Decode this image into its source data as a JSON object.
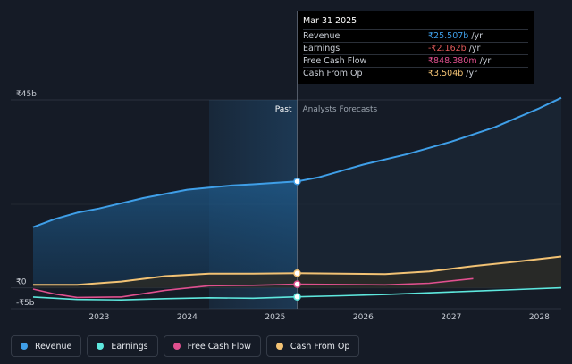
{
  "chart_data": {
    "type": "line",
    "y_ticks": [
      {
        "value": 45,
        "label": "₹45b"
      },
      {
        "value": 0,
        "label": "₹0"
      },
      {
        "value": -5,
        "label": "-₹5b"
      }
    ],
    "ylim": [
      -5,
      45
    ],
    "x_ticks": [
      "2023",
      "2024",
      "2025",
      "2026",
      "2027",
      "2028"
    ],
    "past_label": "Past",
    "forecast_label": "Analysts Forecasts",
    "series": [
      {
        "name": "Revenue",
        "color": "#3f9fe8",
        "points": [
          [
            2022.25,
            14.5
          ],
          [
            2022.5,
            16.5
          ],
          [
            2022.75,
            18.0
          ],
          [
            2023.0,
            19.0
          ],
          [
            2023.5,
            21.5
          ],
          [
            2024.0,
            23.5
          ],
          [
            2024.5,
            24.5
          ],
          [
            2024.75,
            24.8
          ],
          [
            2025.25,
            25.5
          ],
          [
            2025.5,
            26.5
          ],
          [
            2026.0,
            29.5
          ],
          [
            2026.5,
            32.0
          ],
          [
            2027.0,
            35.0
          ],
          [
            2027.5,
            38.5
          ],
          [
            2028.0,
            43.0
          ],
          [
            2028.25,
            45.5
          ]
        ]
      },
      {
        "name": "Earnings",
        "color": "#5ee8de",
        "points": [
          [
            2022.25,
            -2.2
          ],
          [
            2022.75,
            -2.8
          ],
          [
            2023.25,
            -2.9
          ],
          [
            2023.75,
            -2.6
          ],
          [
            2024.25,
            -2.4
          ],
          [
            2024.75,
            -2.5
          ],
          [
            2025.25,
            -2.16
          ],
          [
            2025.75,
            -1.9
          ],
          [
            2026.25,
            -1.6
          ],
          [
            2026.75,
            -1.2
          ],
          [
            2027.25,
            -0.8
          ],
          [
            2027.75,
            -0.4
          ],
          [
            2028.25,
            0.0
          ]
        ]
      },
      {
        "name": "Free Cash Flow",
        "color": "#e0508f",
        "points": [
          [
            2022.25,
            -0.3
          ],
          [
            2022.5,
            -1.5
          ],
          [
            2022.75,
            -2.3
          ],
          [
            2023.25,
            -2.2
          ],
          [
            2023.75,
            -0.6
          ],
          [
            2024.25,
            0.5
          ],
          [
            2024.75,
            0.6
          ],
          [
            2025.25,
            0.85
          ],
          [
            2025.75,
            0.8
          ],
          [
            2026.25,
            0.7
          ],
          [
            2026.75,
            1.1
          ],
          [
            2027.25,
            2.2
          ]
        ]
      },
      {
        "name": "Cash From Op",
        "color": "#f2c274",
        "points": [
          [
            2022.25,
            0.7
          ],
          [
            2022.75,
            0.7
          ],
          [
            2023.25,
            1.5
          ],
          [
            2023.75,
            2.8
          ],
          [
            2024.25,
            3.4
          ],
          [
            2024.75,
            3.4
          ],
          [
            2025.25,
            3.5
          ],
          [
            2025.75,
            3.4
          ],
          [
            2026.25,
            3.3
          ],
          [
            2026.75,
            3.9
          ],
          [
            2027.25,
            5.2
          ],
          [
            2027.75,
            6.3
          ],
          [
            2028.25,
            7.5
          ]
        ]
      }
    ],
    "past_end_x": 2025.25,
    "highlight_start_x": 2024.25
  },
  "tooltip": {
    "date": "Mar 31 2025",
    "rows": [
      {
        "label": "Revenue",
        "value": "₹25.507b",
        "unit": "/yr",
        "color": "#3f9fe8"
      },
      {
        "label": "Earnings",
        "value": "-₹2.162b",
        "unit": "/yr",
        "color": "#e05a5a"
      },
      {
        "label": "Free Cash Flow",
        "value": "₹848.380m",
        "unit": "/yr",
        "color": "#e0508f"
      },
      {
        "label": "Cash From Op",
        "value": "₹3.504b",
        "unit": "/yr",
        "color": "#f2c274"
      }
    ]
  },
  "legend": [
    {
      "label": "Revenue",
      "color": "#3f9fe8"
    },
    {
      "label": "Earnings",
      "color": "#5ee8de"
    },
    {
      "label": "Free Cash Flow",
      "color": "#e0508f"
    },
    {
      "label": "Cash From Op",
      "color": "#f2c274"
    }
  ]
}
